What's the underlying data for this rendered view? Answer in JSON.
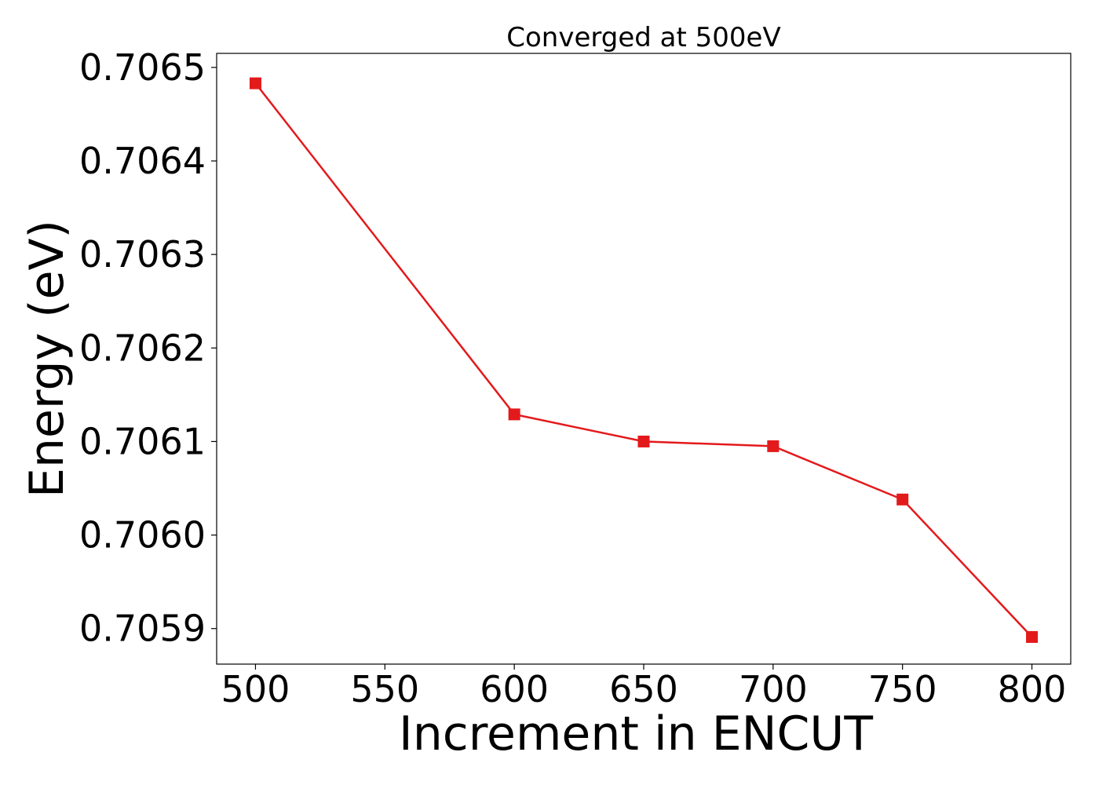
{
  "chart_data": {
    "type": "line",
    "title": "Converged at 500eV",
    "xlabel": "Increment in ENCUT",
    "ylabel": "Energy (eV)",
    "x": [
      500,
      600,
      650,
      700,
      750,
      800
    ],
    "series": [
      {
        "values": [
          0.706483,
          0.706129,
          0.7061,
          0.706095,
          0.706038,
          0.705891
        ],
        "color": "#e31a1c",
        "marker": "square"
      }
    ],
    "xticks": [
      "500",
      "550",
      "600",
      "650",
      "700",
      "750",
      "800"
    ],
    "yticks": [
      "0.7059",
      "0.7060",
      "0.7061",
      "0.7062",
      "0.7063",
      "0.7064",
      "0.7065"
    ],
    "xlim": [
      485,
      815
    ],
    "ylim": [
      0.705862,
      0.706515
    ],
    "grid": false,
    "legend": "none"
  }
}
